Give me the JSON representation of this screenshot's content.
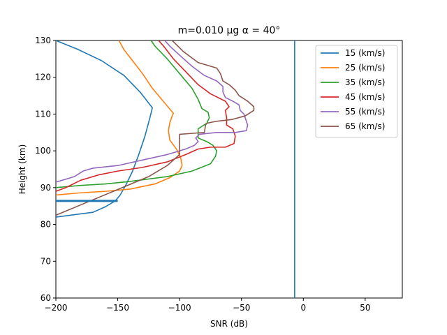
{
  "chart_data": {
    "type": "line",
    "title": "m=0.010 μg α = 40°",
    "xlabel": "SNR (dB)",
    "ylabel": "Height (km)",
    "xlim": [
      -200,
      80
    ],
    "ylim": [
      60,
      130
    ],
    "xticks": [
      -200,
      -150,
      -100,
      -50,
      0,
      50
    ],
    "yticks": [
      60,
      70,
      80,
      90,
      100,
      110,
      120,
      130
    ],
    "xtick_labels": [
      "−200",
      "−150",
      "−100",
      "−50",
      "0",
      "50"
    ],
    "ytick_labels": [
      "60",
      "70",
      "80",
      "90",
      "100",
      "110",
      "120",
      "130"
    ],
    "grid": false,
    "legend_position": "top-right",
    "vertical_line": {
      "x": -7,
      "color": "#1f77b4"
    },
    "horizontal_marker": {
      "x": [
        -200,
        -150
      ],
      "y": 86.4,
      "color": "#1f77b4"
    },
    "series": [
      {
        "name": "15 (km/s)",
        "color": "#1f77b4",
        "points": [
          [
            -200,
            82.0
          ],
          [
            -170,
            83.3
          ],
          [
            -160,
            84.8
          ],
          [
            -152,
            86.4
          ],
          [
            -148,
            88.0
          ],
          [
            -143,
            91.0
          ],
          [
            -138,
            94.5
          ],
          [
            -133,
            99.0
          ],
          [
            -128,
            104.0
          ],
          [
            -124,
            109.0
          ],
          [
            -122,
            111.7
          ],
          [
            -132,
            116.0
          ],
          [
            -145,
            120.5
          ],
          [
            -163,
            124.5
          ],
          [
            -183,
            127.7
          ],
          [
            -200,
            130.0
          ]
        ]
      },
      {
        "name": "25 (km/s)",
        "color": "#ff7f0e",
        "points": [
          [
            -200,
            88.0
          ],
          [
            -180,
            88.6
          ],
          [
            -160,
            89.0
          ],
          [
            -140,
            89.6
          ],
          [
            -120,
            91.0
          ],
          [
            -108,
            92.7
          ],
          [
            -100,
            94.5
          ],
          [
            -98,
            96.0
          ],
          [
            -99,
            98.0
          ],
          [
            -102,
            100.2
          ],
          [
            -108,
            103.0
          ],
          [
            -109,
            105.5
          ],
          [
            -108,
            107.5
          ],
          [
            -106,
            109.5
          ],
          [
            -105,
            110.2
          ],
          [
            -112,
            113.0
          ],
          [
            -122,
            117.0
          ],
          [
            -130,
            121.0
          ],
          [
            -138,
            124.5
          ],
          [
            -145,
            127.5
          ],
          [
            -149,
            130.0
          ]
        ]
      },
      {
        "name": "35 (km/s)",
        "color": "#2ca02c",
        "points": [
          [
            -200,
            90.0
          ],
          [
            -180,
            90.6
          ],
          [
            -160,
            91.0
          ],
          [
            -140,
            91.7
          ],
          [
            -110,
            93.0
          ],
          [
            -90,
            94.5
          ],
          [
            -75,
            96.5
          ],
          [
            -71,
            98.5
          ],
          [
            -70,
            100.0
          ],
          [
            -73,
            101.5
          ],
          [
            -78,
            102.5
          ],
          [
            -85,
            103.5
          ],
          [
            -85,
            106.0
          ],
          [
            -78,
            107.5
          ],
          [
            -76,
            109.0
          ],
          [
            -77,
            110.5
          ],
          [
            -82,
            111.5
          ],
          [
            -85,
            114.0
          ],
          [
            -90,
            117.0
          ],
          [
            -100,
            121.0
          ],
          [
            -110,
            125.0
          ],
          [
            -120,
            128.5
          ],
          [
            -123,
            130.0
          ]
        ]
      },
      {
        "name": "45 (km/s)",
        "color": "#d62728",
        "points": [
          [
            -200,
            89.0
          ],
          [
            -192,
            90.0
          ],
          [
            -180,
            92.0
          ],
          [
            -165,
            93.5
          ],
          [
            -150,
            94.5
          ],
          [
            -130,
            95.5
          ],
          [
            -110,
            97.0
          ],
          [
            -95,
            99.0
          ],
          [
            -85,
            100.5
          ],
          [
            -75,
            101.0
          ],
          [
            -63,
            101.0
          ],
          [
            -56,
            102.0
          ],
          [
            -55,
            104.0
          ],
          [
            -57,
            106.0
          ],
          [
            -62,
            107.0
          ],
          [
            -62,
            109.0
          ],
          [
            -63,
            111.0
          ],
          [
            -60,
            112.0
          ],
          [
            -63,
            113.5
          ],
          [
            -75,
            115.5
          ],
          [
            -85,
            118.0
          ],
          [
            -95,
            121.5
          ],
          [
            -105,
            125.0
          ],
          [
            -113,
            128.5
          ],
          [
            -117,
            130.0
          ]
        ]
      },
      {
        "name": "55 (km/s)",
        "color": "#9467bd",
        "points": [
          [
            -200,
            91.5
          ],
          [
            -185,
            93.0
          ],
          [
            -178,
            94.5
          ],
          [
            -170,
            95.3
          ],
          [
            -150,
            96.0
          ],
          [
            -130,
            97.5
          ],
          [
            -110,
            99.0
          ],
          [
            -95,
            100.5
          ],
          [
            -88,
            101.5
          ],
          [
            -85,
            102.5
          ],
          [
            -87,
            103.5
          ],
          [
            -84,
            104.5
          ],
          [
            -70,
            105.0
          ],
          [
            -55,
            105.0
          ],
          [
            -46,
            105.5
          ],
          [
            -45,
            107.0
          ],
          [
            -48,
            110.0
          ],
          [
            -51,
            111.0
          ],
          [
            -52,
            112.5
          ],
          [
            -57,
            113.5
          ],
          [
            -63,
            114.5
          ],
          [
            -65,
            116.0
          ],
          [
            -65,
            117.5
          ],
          [
            -70,
            119.0
          ],
          [
            -80,
            120.5
          ],
          [
            -90,
            123.0
          ],
          [
            -100,
            126.0
          ],
          [
            -108,
            128.5
          ],
          [
            -112,
            130.0
          ]
        ]
      },
      {
        "name": "65 (km/s)",
        "color": "#8c564b",
        "points": [
          [
            -200,
            82.5
          ],
          [
            -175,
            86.0
          ],
          [
            -150,
            89.5
          ],
          [
            -125,
            93.0
          ],
          [
            -110,
            96.0
          ],
          [
            -100,
            99.0
          ],
          [
            -100,
            101.5
          ],
          [
            -100,
            104.5
          ],
          [
            -92,
            104.7
          ],
          [
            -80,
            105.0
          ],
          [
            -79,
            107.0
          ],
          [
            -78,
            107.5
          ],
          [
            -71,
            108.0
          ],
          [
            -58,
            108.5
          ],
          [
            -47,
            109.5
          ],
          [
            -40,
            111.0
          ],
          [
            -40,
            112.0
          ],
          [
            -45,
            113.5
          ],
          [
            -52,
            115.0
          ],
          [
            -55,
            116.5
          ],
          [
            -60,
            118.0
          ],
          [
            -65,
            119.0
          ],
          [
            -67,
            121.0
          ],
          [
            -70,
            122.5
          ],
          [
            -85,
            124.0
          ],
          [
            -97,
            127.0
          ],
          [
            -106,
            130.0
          ]
        ]
      }
    ]
  }
}
